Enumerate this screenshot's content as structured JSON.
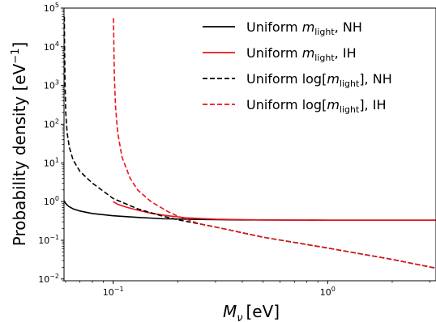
{
  "chart_data": {
    "type": "line",
    "xscale": "log",
    "yscale": "log",
    "xlim": [
      0.059,
      3.2
    ],
    "ylim": [
      0.009,
      100000
    ],
    "xlabel": {
      "main": "M",
      "sub": "ν",
      "rest": "[eV]"
    },
    "ylabel": {
      "main": "Probability density [eV",
      "sup": "−1",
      "rest": "]"
    },
    "x_ticks": [
      {
        "value": 0.1,
        "base": "10",
        "exp": "−1"
      },
      {
        "value": 1,
        "base": "10",
        "exp": "0"
      }
    ],
    "y_ticks": [
      {
        "value": 0.01,
        "base": "10",
        "exp": "−2"
      },
      {
        "value": 0.1,
        "base": "10",
        "exp": "−1"
      },
      {
        "value": 1,
        "base": "10",
        "exp": "0"
      },
      {
        "value": 10,
        "base": "10",
        "exp": "1"
      },
      {
        "value": 100,
        "base": "10",
        "exp": "2"
      },
      {
        "value": 1000,
        "base": "10",
        "exp": "3"
      },
      {
        "value": 10000,
        "base": "10",
        "exp": "4"
      },
      {
        "value": 100000,
        "base": "10",
        "exp": "5"
      }
    ],
    "grid": false,
    "legend_position": "top-right",
    "series": [
      {
        "name": {
          "a": "Uniform ",
          "b": "m",
          "c": "light",
          "d": ", NH"
        },
        "color": "#000000",
        "dash": "solid",
        "points": [
          [
            0.0591,
            1.05
          ],
          [
            0.06,
            0.9
          ],
          [
            0.062,
            0.75
          ],
          [
            0.065,
            0.65
          ],
          [
            0.07,
            0.57
          ],
          [
            0.08,
            0.49
          ],
          [
            0.1,
            0.43
          ],
          [
            0.13,
            0.39
          ],
          [
            0.17,
            0.36
          ],
          [
            0.25,
            0.345
          ],
          [
            0.4,
            0.335
          ],
          [
            1,
            0.33
          ],
          [
            3.2,
            0.33
          ]
        ]
      },
      {
        "name": {
          "a": "Uniform ",
          "b": "m",
          "c": "light",
          "d": ", IH"
        },
        "color": "#e8141a",
        "dash": "solid",
        "points": [
          [
            0.1,
            1.0
          ],
          [
            0.105,
            0.85
          ],
          [
            0.115,
            0.72
          ],
          [
            0.13,
            0.6
          ],
          [
            0.15,
            0.5
          ],
          [
            0.18,
            0.43
          ],
          [
            0.22,
            0.38
          ],
          [
            0.3,
            0.35
          ],
          [
            0.5,
            0.335
          ],
          [
            1,
            0.33
          ],
          [
            3.2,
            0.33
          ]
        ]
      },
      {
        "name": {
          "a": "Uniform log[",
          "b": "m",
          "c": "light",
          "d": "], NH"
        },
        "color": "#000000",
        "dash": "dashed",
        "points": [
          [
            0.0592,
            60000
          ],
          [
            0.05935,
            10000
          ],
          [
            0.0596,
            1500
          ],
          [
            0.0601,
            200
          ],
          [
            0.061,
            60
          ],
          [
            0.0625,
            25
          ],
          [
            0.065,
            12
          ],
          [
            0.07,
            6
          ],
          [
            0.08,
            3
          ],
          [
            0.1,
            1.2
          ],
          [
            0.13,
            0.65
          ],
          [
            0.17,
            0.42
          ],
          [
            0.2,
            0.34
          ],
          [
            0.3,
            0.22
          ],
          [
            0.5,
            0.12
          ],
          [
            1,
            0.063
          ],
          [
            2,
            0.032
          ],
          [
            3.2,
            0.019
          ]
        ]
      },
      {
        "name": {
          "a": "Uniform log[",
          "b": "m",
          "c": "light",
          "d": "], IH"
        },
        "color": "#e8141a",
        "dash": "dashed",
        "points": [
          [
            0.1003,
            55000
          ],
          [
            0.1006,
            20000
          ],
          [
            0.1012,
            2000
          ],
          [
            0.1025,
            300
          ],
          [
            0.105,
            60
          ],
          [
            0.11,
            14
          ],
          [
            0.12,
            4
          ],
          [
            0.13,
            2
          ],
          [
            0.15,
            1
          ],
          [
            0.18,
            0.55
          ],
          [
            0.2,
            0.42
          ],
          [
            0.25,
            0.27
          ],
          [
            0.3,
            0.22
          ],
          [
            0.5,
            0.12
          ],
          [
            1,
            0.063
          ],
          [
            2,
            0.032
          ],
          [
            3.2,
            0.019
          ]
        ]
      }
    ]
  }
}
